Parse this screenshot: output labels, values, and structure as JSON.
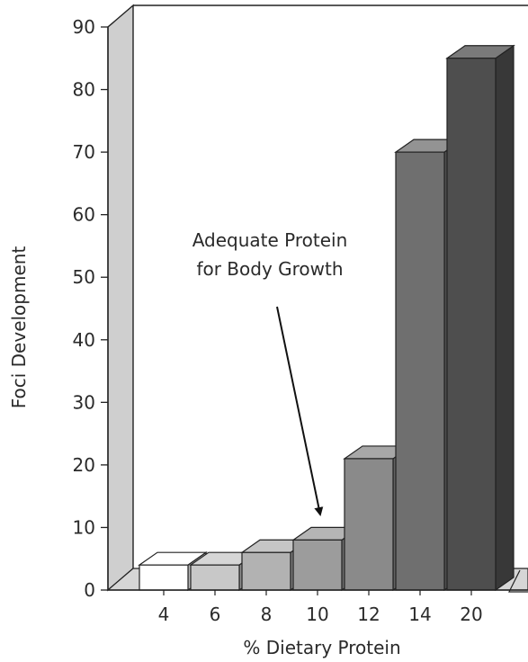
{
  "chart_data": {
    "type": "bar",
    "style": "3d",
    "title": "",
    "xlabel": "% Dietary Protein",
    "ylabel": "Foci Development",
    "categories": [
      "4",
      "6",
      "8",
      "10",
      "12",
      "14",
      "20"
    ],
    "values": [
      4,
      4,
      6,
      8,
      21,
      70,
      85
    ],
    "ylim": [
      0,
      90
    ],
    "yticks": [
      0,
      10,
      20,
      30,
      40,
      50,
      60,
      70,
      80,
      90
    ],
    "grid": false,
    "legend": "none",
    "bar_colors": [
      "#ffffff",
      "#c8c8c8",
      "#b2b2b2",
      "#9c9c9c",
      "#8a8a8a",
      "#6f6f6f",
      "#4e4e4e"
    ],
    "annotation": {
      "lines": [
        "Adequate Protein",
        "for Body Growth"
      ],
      "points_to_category": "10"
    }
  }
}
